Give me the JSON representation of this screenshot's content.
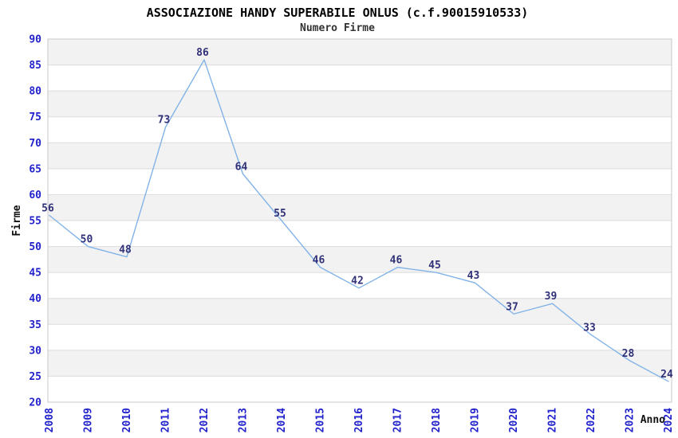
{
  "page": {
    "title": "ASSOCIAZIONE HANDY SUPERABILE ONLUS (c.f.90015910533)",
    "subtitle": "Numero Firme"
  },
  "chart_data": {
    "type": "line",
    "title": "ASSOCIAZIONE HANDY SUPERABILE ONLUS (c.f.90015910533)",
    "subtitle": "Numero Firme",
    "xlabel": "Anno",
    "ylabel": "Firme",
    "categories": [
      "2008",
      "2009",
      "2010",
      "2011",
      "2012",
      "2013",
      "2014",
      "2015",
      "2016",
      "2017",
      "2018",
      "2019",
      "2020",
      "2021",
      "2022",
      "2023",
      "2024"
    ],
    "values": [
      56,
      50,
      48,
      73,
      86,
      64,
      55,
      46,
      42,
      46,
      45,
      43,
      37,
      39,
      33,
      28,
      24
    ],
    "ylim": [
      20,
      90
    ],
    "ytick_step": 5,
    "grid": true,
    "legend_position": "none",
    "band_style": "alternating-horizontal",
    "markers": "none",
    "colors": {
      "line": "#82B3E8",
      "tick_label": "#2222CC",
      "value_label": "#31317A",
      "band_gray": "#F2F2F2",
      "band_white": "#FFFFFF",
      "grid_line": "#DCDCDC",
      "border": "#C8C8C8",
      "title": "#000000",
      "axis_label": "#111111"
    }
  }
}
